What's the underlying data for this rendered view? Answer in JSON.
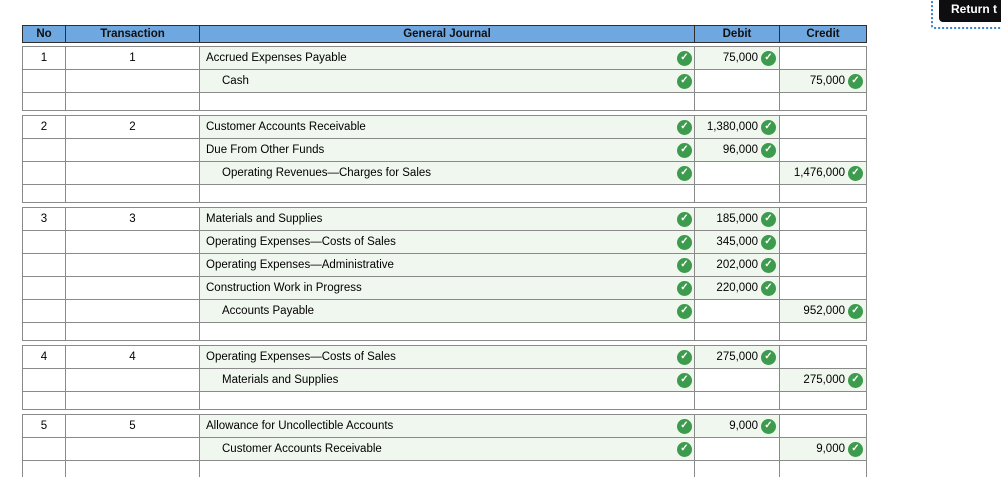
{
  "return_button": {
    "label": "Return t"
  },
  "journal": {
    "columns": [
      "No",
      "Transaction",
      "General Journal",
      "Debit",
      "Credit"
    ],
    "entries": [
      {
        "no": "1",
        "transaction": "1",
        "rows": [
          {
            "account": "Accrued Expenses Payable",
            "indent": false,
            "debit": "75,000",
            "credit": ""
          },
          {
            "account": "Cash",
            "indent": true,
            "debit": "",
            "credit": "75,000"
          }
        ]
      },
      {
        "no": "2",
        "transaction": "2",
        "rows": [
          {
            "account": "Customer Accounts Receivable",
            "indent": false,
            "debit": "1,380,000",
            "credit": ""
          },
          {
            "account": "Due From Other Funds",
            "indent": false,
            "debit": "96,000",
            "credit": ""
          },
          {
            "account": "Operating Revenues—Charges for Sales",
            "indent": true,
            "debit": "",
            "credit": "1,476,000"
          }
        ]
      },
      {
        "no": "3",
        "transaction": "3",
        "rows": [
          {
            "account": "Materials and Supplies",
            "indent": false,
            "debit": "185,000",
            "credit": ""
          },
          {
            "account": "Operating Expenses—Costs of Sales",
            "indent": false,
            "debit": "345,000",
            "credit": ""
          },
          {
            "account": "Operating Expenses—Administrative",
            "indent": false,
            "debit": "202,000",
            "credit": ""
          },
          {
            "account": "Construction Work in Progress",
            "indent": false,
            "debit": "220,000",
            "credit": ""
          },
          {
            "account": "Accounts Payable",
            "indent": true,
            "debit": "",
            "credit": "952,000"
          }
        ]
      },
      {
        "no": "4",
        "transaction": "4",
        "rows": [
          {
            "account": "Operating Expenses—Costs of Sales",
            "indent": false,
            "debit": "275,000",
            "credit": ""
          },
          {
            "account": "Materials and Supplies",
            "indent": true,
            "debit": "",
            "credit": "275,000"
          }
        ]
      },
      {
        "no": "5",
        "transaction": "5",
        "rows": [
          {
            "account": "Allowance for Uncollectible Accounts",
            "indent": false,
            "debit": "9,000",
            "credit": ""
          },
          {
            "account": "Customer Accounts Receivable",
            "indent": true,
            "debit": "",
            "credit": "9,000"
          }
        ]
      }
    ],
    "colors": {
      "header_bg": "#6FA7E0",
      "correct_cell_bg": "#F0F7EE",
      "check_green": "#3D9B4E",
      "grid_border": "#8A8A8A"
    },
    "check_icon": "✓"
  }
}
